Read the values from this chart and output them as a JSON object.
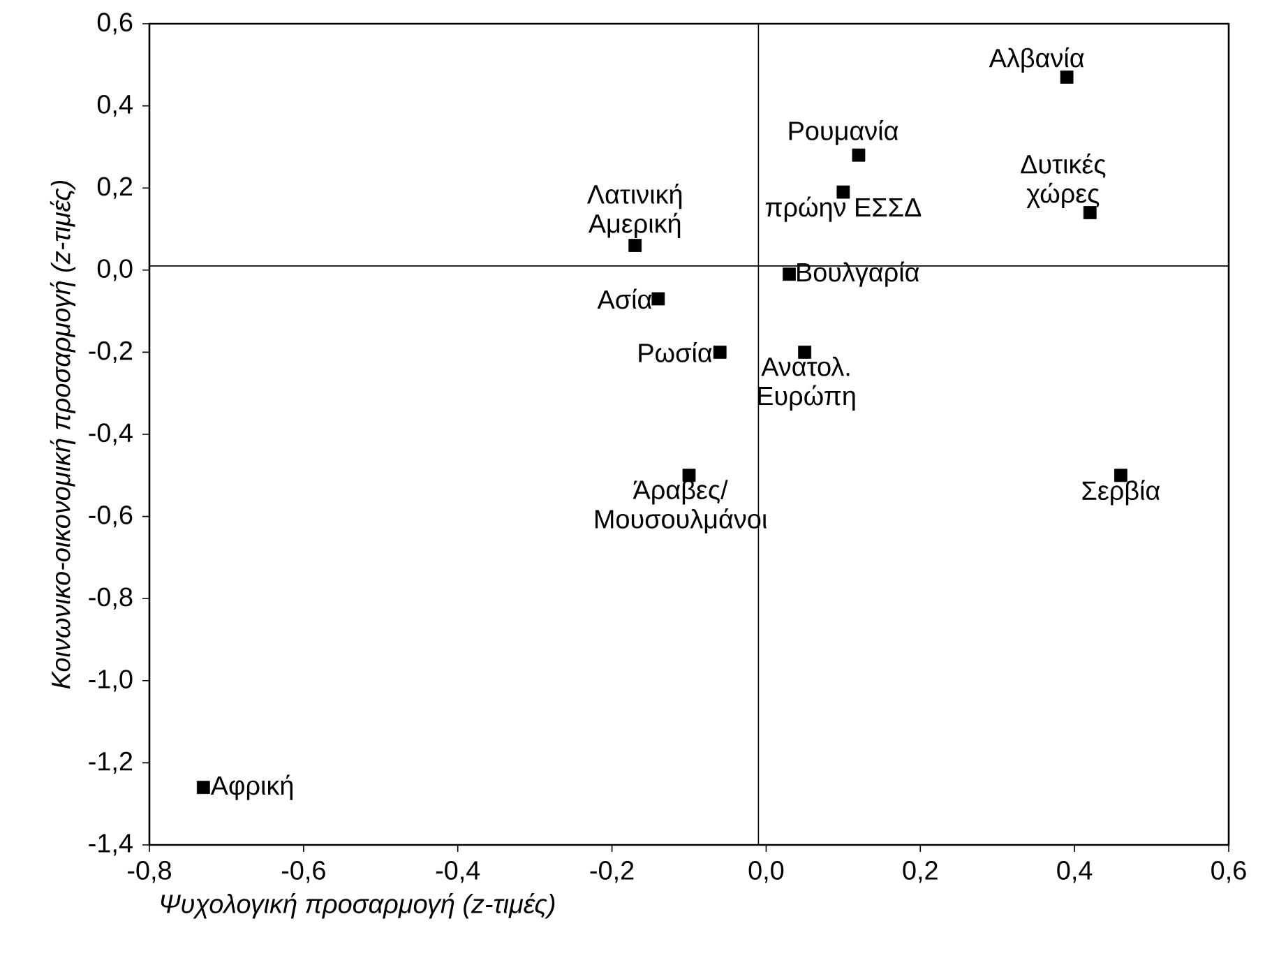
{
  "chart_data": {
    "type": "scatter",
    "xlabel": "Ψυχολογική προσαρμογή (z-τιμές)",
    "ylabel": "Κοινωνικο-οικονομική προσαρμογή (z-τιμές)",
    "x": [
      0.39,
      0.42,
      0.12,
      0.1,
      -0.17,
      0.03,
      -0.14,
      -0.06,
      0.05,
      -0.1,
      0.46,
      -0.73
    ],
    "values": [
      0.47,
      0.14,
      0.28,
      0.19,
      0.06,
      -0.01,
      -0.07,
      -0.2,
      -0.2,
      -0.5,
      -0.5,
      -1.26
    ],
    "color": "#000000",
    "marker": "square",
    "grid": false,
    "xlim": [
      -0.8,
      0.6
    ],
    "ylim": [
      -1.4,
      0.6
    ],
    "xticks": [
      {
        "value": -0.8,
        "label": "-0,8"
      },
      {
        "value": -0.6,
        "label": "-0,6"
      },
      {
        "value": -0.4,
        "label": "-0,4"
      },
      {
        "value": -0.2,
        "label": "-0,2"
      },
      {
        "value": 0,
        "label": "0,0"
      },
      {
        "value": 0.2,
        "label": "0,2"
      },
      {
        "value": 0.4,
        "label": "0,4"
      },
      {
        "value": 0.6,
        "label": "0,6"
      }
    ],
    "yticks": [
      {
        "value": -1.4,
        "label": "-1,4"
      },
      {
        "value": -1.2,
        "label": "-1,2"
      },
      {
        "value": -1.0,
        "label": "-1,0"
      },
      {
        "value": -0.8,
        "label": "-0,8"
      },
      {
        "value": -0.6,
        "label": "-0,6"
      },
      {
        "value": -0.4,
        "label": "-0,4"
      },
      {
        "value": -0.2,
        "label": "-0,2"
      },
      {
        "value": 0,
        "label": "0,0"
      },
      {
        "value": 0.2,
        "label": "0,2"
      },
      {
        "value": 0.4,
        "label": "0,4"
      },
      {
        "value": 0.6,
        "label": "0,6"
      }
    ],
    "ref_lines": [
      {
        "axis": "x",
        "value": -0.01,
        "color": "#000000"
      },
      {
        "axis": "y",
        "value": 0.01,
        "color": "#000000"
      }
    ],
    "annotations": [
      {
        "text": "Αλβανία",
        "x": 0.39,
        "y": 0.47
      },
      {
        "text": "Δυτικές χώρες",
        "x": 0.42,
        "y": 0.14
      },
      {
        "text": "Ρουμανία",
        "x": 0.12,
        "y": 0.28
      },
      {
        "text": "πρώην ΕΣΣΔ",
        "x": 0.1,
        "y": 0.19
      },
      {
        "text": "Λατινική Αμερική",
        "x": -0.17,
        "y": 0.06
      },
      {
        "text": "Βουλγαρία",
        "x": 0.03,
        "y": -0.01
      },
      {
        "text": "Ασία",
        "x": -0.14,
        "y": -0.07
      },
      {
        "text": "Ρωσία",
        "x": -0.06,
        "y": -0.2
      },
      {
        "text": "Ανατολ. Ευρώπη",
        "x": 0.05,
        "y": -0.2
      },
      {
        "text": "Άραβες/ Μουσουλμάνοι",
        "x": -0.1,
        "y": -0.5
      },
      {
        "text": "Σερβία",
        "x": 0.46,
        "y": -0.5
      },
      {
        "text": "Αφρική",
        "x": -0.73,
        "y": -1.26
      }
    ]
  }
}
